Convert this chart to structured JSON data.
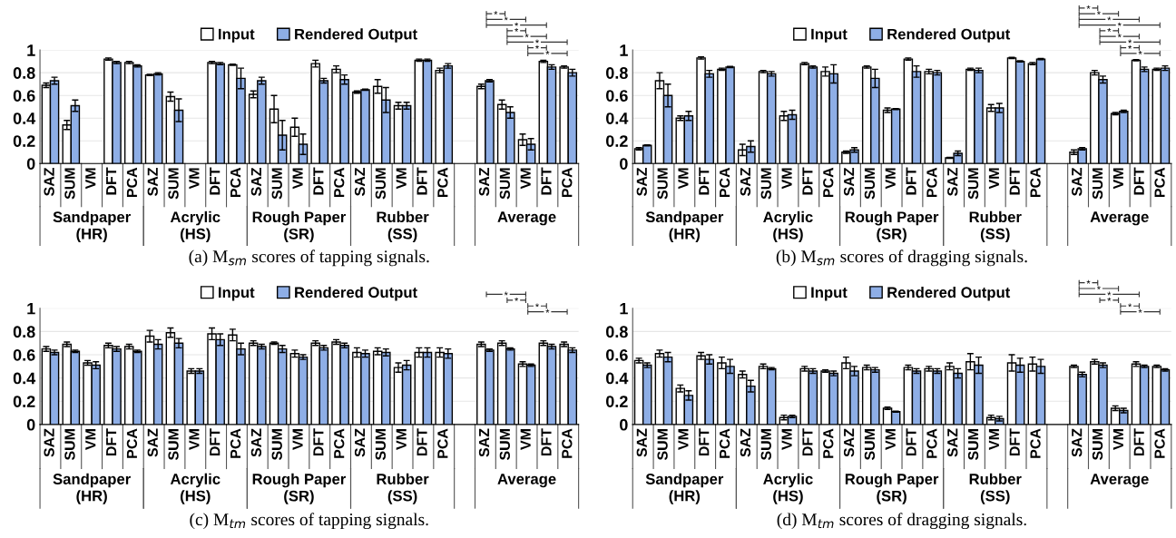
{
  "chart_data": [
    {
      "type": "bar",
      "categories": [
        "SAZ",
        "SUM",
        "VM",
        "DFT",
        "PCA",
        "SAZ",
        "SUM",
        "VM",
        "DFT",
        "PCA",
        "SAZ",
        "SUM",
        "VM",
        "DFT",
        "PCA",
        "SAZ",
        "SUM",
        "VM",
        "DFT",
        "PCA",
        null,
        "SAZ",
        "SUM",
        "VM",
        "DFT",
        "PCA"
      ],
      "series": [
        {
          "name": "Input",
          "color": "#ffffff",
          "values": [
            0.69,
            0.34,
            null,
            0.92,
            0.89,
            0.78,
            0.59,
            null,
            0.89,
            0.87,
            0.61,
            0.48,
            0.32,
            0.88,
            0.83,
            0.63,
            0.68,
            0.51,
            0.91,
            0.82,
            null,
            0.68,
            0.52,
            0.21,
            0.9,
            0.85
          ],
          "errors": [
            0.02,
            0.04,
            null,
            0.01,
            0.01,
            0.005,
            0.04,
            null,
            0.01,
            0.005,
            0.03,
            0.12,
            0.08,
            0.03,
            0.03,
            0.01,
            0.06,
            0.03,
            0.01,
            0.02,
            null,
            0.02,
            0.04,
            0.05,
            0.01,
            0.01
          ]
        },
        {
          "name": "Rendered Output",
          "color": "#8eaee6",
          "values": [
            0.73,
            0.51,
            null,
            0.89,
            0.86,
            0.79,
            0.47,
            null,
            0.88,
            0.75,
            0.73,
            0.25,
            0.17,
            0.73,
            0.74,
            0.65,
            0.56,
            0.51,
            0.91,
            0.86,
            null,
            0.73,
            0.45,
            0.17,
            0.85,
            0.8
          ],
          "errors": [
            0.03,
            0.05,
            null,
            0.01,
            0.01,
            0.01,
            0.1,
            null,
            0.01,
            0.09,
            0.03,
            0.13,
            0.09,
            0.02,
            0.04,
            0.005,
            0.11,
            0.03,
            0.01,
            0.02,
            null,
            0.01,
            0.05,
            0.05,
            0.02,
            0.03
          ]
        }
      ],
      "ylim": [
        0,
        1
      ],
      "yticks": [
        0,
        0.2,
        0.4,
        0.6,
        0.8,
        1
      ],
      "grid": "y",
      "legend": "top",
      "annotations": [
        "Sandpaper\n(HR)",
        "Acrylic\n(HS)",
        "Rough Paper\n(SR)",
        "Rubber\n(SS)",
        "Average",
        "*",
        "*",
        "*",
        "*",
        "*",
        "*",
        "*",
        "*",
        "(a) M$_{sm}$ scores of tapping signals."
      ]
    },
    {
      "type": "bar",
      "categories": [
        "SAZ",
        "SUM",
        "VM",
        "DFT",
        "PCA",
        "SAZ",
        "SUM",
        "VM",
        "DFT",
        "PCA",
        "SAZ",
        "SUM",
        "VM",
        "DFT",
        "PCA",
        "SAZ",
        "SUM",
        "VM",
        "DFT",
        "PCA",
        null,
        "SAZ",
        "SUM",
        "VM",
        "DFT",
        "PCA"
      ],
      "series": [
        {
          "name": "Input",
          "color": "#ffffff",
          "values": [
            0.13,
            0.73,
            0.4,
            0.93,
            0.83,
            0.12,
            0.81,
            0.42,
            0.88,
            0.81,
            0.1,
            0.85,
            0.47,
            0.92,
            0.81,
            0.05,
            0.83,
            0.49,
            0.93,
            0.88,
            null,
            0.1,
            0.8,
            0.44,
            0.91,
            0.83
          ],
          "errors": [
            0.01,
            0.07,
            0.02,
            0.01,
            0.01,
            0.05,
            0.01,
            0.04,
            0.01,
            0.04,
            0.01,
            0.01,
            0.02,
            0.01,
            0.02,
            0.005,
            0.01,
            0.03,
            0.005,
            0.01,
            null,
            0.02,
            0.02,
            0.01,
            0.005,
            0.01
          ]
        },
        {
          "name": "Rendered Output",
          "color": "#8eaee6",
          "values": [
            0.16,
            0.6,
            0.42,
            0.79,
            0.85,
            0.15,
            0.79,
            0.43,
            0.85,
            0.79,
            0.12,
            0.75,
            0.48,
            0.81,
            0.8,
            0.09,
            0.82,
            0.49,
            0.9,
            0.92,
            null,
            0.13,
            0.74,
            0.46,
            0.83,
            0.84
          ],
          "errors": [
            0.005,
            0.1,
            0.04,
            0.03,
            0.005,
            0.05,
            0.02,
            0.04,
            0.01,
            0.08,
            0.02,
            0.08,
            0.005,
            0.05,
            0.02,
            0.02,
            0.02,
            0.04,
            0.005,
            0.005,
            null,
            0.01,
            0.03,
            0.01,
            0.02,
            0.02
          ]
        }
      ],
      "ylim": [
        0,
        1
      ],
      "yticks": [
        0,
        0.2,
        0.4,
        0.6,
        0.8,
        1
      ],
      "grid": "y",
      "legend": "top",
      "annotations": [
        "Sandpaper\n(HR)",
        "Acrylic\n(HS)",
        "Rough Paper\n(SR)",
        "Rubber\n(SS)",
        "Average",
        "*",
        "*",
        "*",
        "*",
        "*",
        "*",
        "*",
        "*",
        "*",
        "(b) M$_{sm}$ scores of dragging signals."
      ]
    },
    {
      "type": "bar",
      "categories": [
        "SAZ",
        "SUM",
        "VM",
        "DFT",
        "PCA",
        "SAZ",
        "SUM",
        "VM",
        "DFT",
        "PCA",
        "SAZ",
        "SUM",
        "VM",
        "DFT",
        "PCA",
        "SAZ",
        "SUM",
        "VM",
        "DFT",
        "PCA",
        null,
        "SAZ",
        "SUM",
        "VM",
        "DFT",
        "PCA"
      ],
      "series": [
        {
          "name": "Input",
          "color": "#ffffff",
          "values": [
            0.65,
            0.69,
            0.53,
            0.68,
            0.67,
            0.76,
            0.79,
            0.46,
            0.78,
            0.77,
            0.7,
            0.7,
            0.61,
            0.7,
            0.71,
            0.62,
            0.63,
            0.49,
            0.62,
            0.62,
            null,
            0.69,
            0.7,
            0.52,
            0.7,
            0.69
          ],
          "errors": [
            0.02,
            0.02,
            0.02,
            0.02,
            0.02,
            0.05,
            0.04,
            0.02,
            0.05,
            0.05,
            0.02,
            0.01,
            0.03,
            0.02,
            0.02,
            0.04,
            0.03,
            0.04,
            0.04,
            0.04,
            null,
            0.02,
            0.02,
            0.02,
            0.02,
            0.02
          ]
        },
        {
          "name": "Rendered Output",
          "color": "#8eaee6",
          "values": [
            0.62,
            0.63,
            0.51,
            0.65,
            0.63,
            0.69,
            0.7,
            0.46,
            0.73,
            0.65,
            0.67,
            0.65,
            0.58,
            0.66,
            0.68,
            0.61,
            0.62,
            0.51,
            0.62,
            0.61,
            null,
            0.64,
            0.65,
            0.51,
            0.67,
            0.64
          ],
          "errors": [
            0.02,
            0.01,
            0.03,
            0.02,
            0.01,
            0.04,
            0.04,
            0.02,
            0.05,
            0.05,
            0.02,
            0.03,
            0.02,
            0.02,
            0.02,
            0.03,
            0.03,
            0.04,
            0.04,
            0.04,
            null,
            0.01,
            0.01,
            0.01,
            0.02,
            0.02
          ]
        }
      ],
      "ylim": [
        0,
        1
      ],
      "yticks": [
        0,
        0.2,
        0.4,
        0.6,
        0.8,
        1
      ],
      "grid": "y",
      "legend": "top",
      "annotations": [
        "Sandpaper\n(HR)",
        "Acrylic\n(HS)",
        "Rough Paper\n(SR)",
        "Rubber\n(SS)",
        "Average",
        "*",
        "*",
        "*",
        "*",
        "(c) M$_{tm}$ scores of tapping signals."
      ]
    },
    {
      "type": "bar",
      "categories": [
        "SAZ",
        "SUM",
        "VM",
        "DFT",
        "PCA",
        "SAZ",
        "SUM",
        "VM",
        "DFT",
        "PCA",
        "SAZ",
        "SUM",
        "VM",
        "DFT",
        "PCA",
        "SAZ",
        "SUM",
        "VM",
        "DFT",
        "PCA",
        null,
        "SAZ",
        "SUM",
        "VM",
        "DFT",
        "PCA"
      ],
      "series": [
        {
          "name": "Input",
          "color": "#ffffff",
          "values": [
            0.55,
            0.61,
            0.31,
            0.59,
            0.53,
            0.43,
            0.5,
            0.06,
            0.48,
            0.46,
            0.53,
            0.49,
            0.14,
            0.49,
            0.48,
            0.5,
            0.54,
            0.06,
            0.53,
            0.52,
            null,
            0.5,
            0.54,
            0.14,
            0.52,
            0.5
          ],
          "errors": [
            0.02,
            0.03,
            0.03,
            0.03,
            0.05,
            0.03,
            0.02,
            0.02,
            0.02,
            0.01,
            0.05,
            0.02,
            0.01,
            0.02,
            0.02,
            0.03,
            0.07,
            0.02,
            0.07,
            0.06,
            null,
            0.01,
            0.02,
            0.02,
            0.02,
            0.01
          ]
        },
        {
          "name": "Rendered Output",
          "color": "#8eaee6",
          "values": [
            0.51,
            0.58,
            0.25,
            0.56,
            0.5,
            0.33,
            0.48,
            0.07,
            0.46,
            0.44,
            0.46,
            0.47,
            0.11,
            0.46,
            0.46,
            0.44,
            0.51,
            0.05,
            0.51,
            0.5,
            null,
            0.43,
            0.51,
            0.12,
            0.5,
            0.47
          ],
          "errors": [
            0.02,
            0.04,
            0.04,
            0.04,
            0.06,
            0.05,
            0.01,
            0.01,
            0.02,
            0.02,
            0.04,
            0.02,
            0.005,
            0.02,
            0.02,
            0.04,
            0.07,
            0.02,
            0.06,
            0.06,
            null,
            0.02,
            0.02,
            0.02,
            0.01,
            0.01
          ]
        }
      ],
      "ylim": [
        0,
        1
      ],
      "yticks": [
        0,
        0.2,
        0.4,
        0.6,
        0.8,
        1
      ],
      "grid": "y",
      "legend": "top",
      "annotations": [
        "Sandpaper\n(HR)",
        "Acrylic\n(HS)",
        "Rough Paper\n(SR)",
        "Rubber\n(SS)",
        "Average",
        "*",
        "*",
        "*",
        "*",
        "*",
        "*",
        "(d) M$_{tm}$ scores of dragging signals."
      ]
    }
  ]
}
